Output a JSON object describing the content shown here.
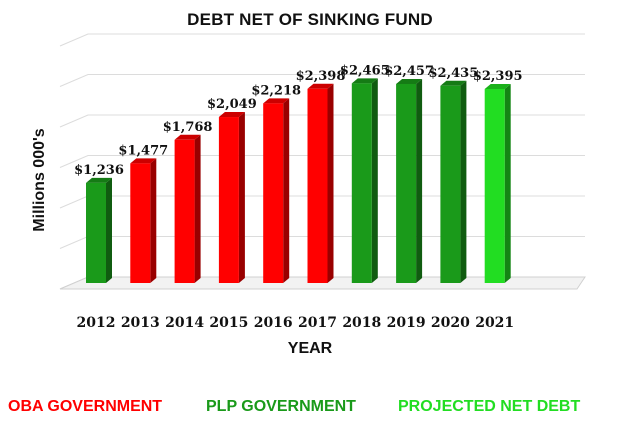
{
  "chart_data": {
    "type": "bar",
    "title": "DEBT NET OF SINKING FUND",
    "xlabel": "YEAR",
    "ylabel": "Millions 000's",
    "categories": [
      "2012",
      "2013",
      "2014",
      "2015",
      "2016",
      "2017",
      "2018",
      "2019",
      "2020",
      "2021"
    ],
    "values": [
      1236,
      1477,
      1768,
      2049,
      2218,
      2398,
      2465,
      2457,
      2435,
      2395
    ],
    "data_labels": [
      "$1,236",
      "$1,477",
      "$1,768",
      "$2,049",
      "$2,218",
      "$2,398",
      "$2,465",
      "$2,457",
      "$2,435",
      "$2,395"
    ],
    "groups": [
      "PLP GOVERNMENT",
      "OBA GOVERNMENT",
      "OBA GOVERNMENT",
      "OBA GOVERNMENT",
      "OBA GOVERNMENT",
      "OBA GOVERNMENT",
      "PLP GOVERNMENT",
      "PLP GOVERNMENT",
      "PLP GOVERNMENT",
      "PROJECTED NET DEBT"
    ],
    "ylim": [
      0,
      3000
    ],
    "grid": true,
    "legend_position": "bottom",
    "legend": [
      {
        "label": "OBA GOVERNMENT",
        "color": "#ff0000"
      },
      {
        "label": "PLP GOVERNMENT",
        "color": "#1a9a1a"
      },
      {
        "label": "PROJECTED NET DEBT",
        "color": "#22dd22"
      }
    ]
  }
}
